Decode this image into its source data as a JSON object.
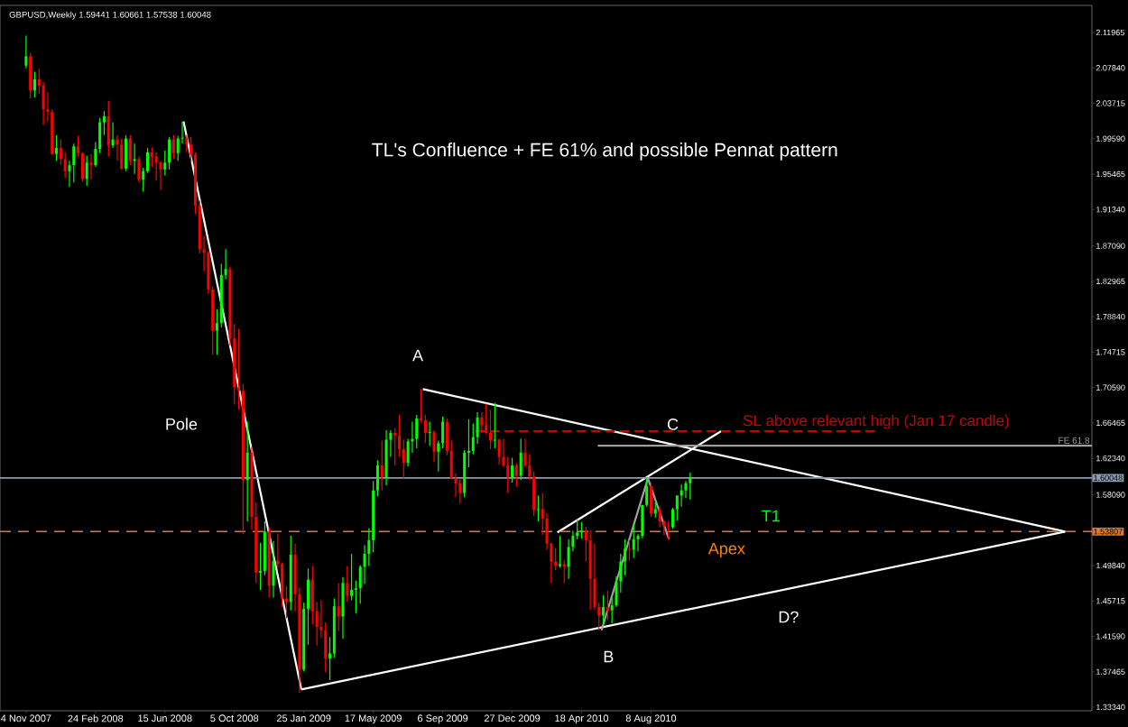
{
  "chart_data": {
    "type": "candlestick",
    "title": "TL's Confluence + FE 61% and possible Pennat pattern",
    "x": [
      "2007-11-04",
      "2007-11-11",
      "2007-11-18",
      "2007-11-25",
      "2007-12-02",
      "2007-12-09",
      "2007-12-16",
      "2007-12-23",
      "2007-12-30",
      "2008-01-06",
      "2008-01-13",
      "2008-01-20",
      "2008-01-27",
      "2008-02-03",
      "2008-02-10",
      "2008-02-17",
      "2008-02-24",
      "2008-03-02",
      "2008-03-09",
      "2008-03-16",
      "2008-03-23",
      "2008-03-30",
      "2008-04-06",
      "2008-04-13",
      "2008-04-20",
      "2008-04-27",
      "2008-05-04",
      "2008-05-11",
      "2008-05-18",
      "2008-05-25",
      "2008-06-01",
      "2008-06-08",
      "2008-06-15",
      "2008-06-22",
      "2008-06-29",
      "2008-07-06",
      "2008-07-13",
      "2008-07-20",
      "2008-07-27",
      "2008-08-03",
      "2008-08-10",
      "2008-08-17",
      "2008-08-24",
      "2008-08-31",
      "2008-09-07",
      "2008-09-14",
      "2008-09-21",
      "2008-09-28",
      "2008-10-05",
      "2008-10-12",
      "2008-10-19",
      "2008-10-26",
      "2008-11-02",
      "2008-11-09",
      "2008-11-16",
      "2008-11-23",
      "2008-11-30",
      "2008-12-07",
      "2008-12-14",
      "2008-12-21",
      "2008-12-28",
      "2009-01-04",
      "2009-01-11",
      "2009-01-18",
      "2009-01-25",
      "2009-02-01",
      "2009-02-08",
      "2009-02-15",
      "2009-02-22",
      "2009-03-01",
      "2009-03-08",
      "2009-03-15",
      "2009-03-22",
      "2009-03-29",
      "2009-04-05",
      "2009-04-12",
      "2009-04-19",
      "2009-04-26",
      "2009-05-03",
      "2009-05-10",
      "2009-05-17",
      "2009-05-24",
      "2009-05-31",
      "2009-06-07",
      "2009-06-14",
      "2009-06-21",
      "2009-06-28",
      "2009-07-05",
      "2009-07-12",
      "2009-07-19",
      "2009-07-26",
      "2009-08-02",
      "2009-08-09",
      "2009-08-16",
      "2009-08-23",
      "2009-08-30",
      "2009-09-06",
      "2009-09-13",
      "2009-09-20",
      "2009-09-27",
      "2009-10-04",
      "2009-10-11",
      "2009-10-18",
      "2009-10-25",
      "2009-11-01",
      "2009-11-08",
      "2009-11-15",
      "2009-11-22",
      "2009-11-29",
      "2009-12-06",
      "2009-12-13",
      "2009-12-20",
      "2009-12-27",
      "2010-01-03",
      "2010-01-10",
      "2010-01-17",
      "2010-01-24",
      "2010-01-31",
      "2010-02-07",
      "2010-02-14",
      "2010-02-21",
      "2010-02-28",
      "2010-03-07",
      "2010-03-14",
      "2010-03-21",
      "2010-03-28",
      "2010-04-04",
      "2010-04-11",
      "2010-04-18",
      "2010-04-25",
      "2010-05-02",
      "2010-05-09",
      "2010-05-16",
      "2010-05-23",
      "2010-05-30",
      "2010-06-06",
      "2010-06-13",
      "2010-06-20",
      "2010-06-27",
      "2010-07-04",
      "2010-07-11",
      "2010-07-18",
      "2010-07-25",
      "2010-08-01",
      "2010-08-08",
      "2010-08-15",
      "2010-08-22",
      "2010-08-29",
      "2010-09-05",
      "2010-09-12",
      "2010-09-19",
      "2010-09-26",
      "2010-10-03",
      "2010-10-10"
    ],
    "ohlc": [
      [
        2.081,
        2.1161,
        2.078,
        2.092
      ],
      [
        2.092,
        2.096,
        2.043,
        2.052
      ],
      [
        2.052,
        2.074,
        2.044,
        2.065
      ],
      [
        2.065,
        2.077,
        2.048,
        2.058
      ],
      [
        2.058,
        2.062,
        2.012,
        2.03
      ],
      [
        2.03,
        2.05,
        2.016,
        2.027
      ],
      [
        2.027,
        2.03,
        1.977,
        1.978
      ],
      [
        1.978,
        2.0,
        1.97,
        1.985
      ],
      [
        1.985,
        1.995,
        1.965,
        1.972
      ],
      [
        1.972,
        1.98,
        1.95,
        1.958
      ],
      [
        1.958,
        1.97,
        1.94,
        1.965
      ],
      [
        1.965,
        1.99,
        1.945,
        1.987
      ],
      [
        1.987,
        1.999,
        1.975,
        1.979
      ],
      [
        1.979,
        1.98,
        1.946,
        1.949
      ],
      [
        1.949,
        1.976,
        1.941,
        1.968
      ],
      [
        1.968,
        1.978,
        1.948,
        1.965
      ],
      [
        1.965,
        1.992,
        1.963,
        1.984
      ],
      [
        1.984,
        2.02,
        1.979,
        2.015
      ],
      [
        2.015,
        2.028,
        2.0,
        2.022
      ],
      [
        2.022,
        2.04,
        1.975,
        1.988
      ],
      [
        1.988,
        2.015,
        1.985,
        1.995
      ],
      [
        1.995,
        2.0,
        1.97,
        1.989
      ],
      [
        1.989,
        1.996,
        1.96,
        1.961
      ],
      [
        1.961,
        2.0,
        1.958,
        1.996
      ],
      [
        1.996,
        2.0,
        1.965,
        1.97
      ],
      [
        1.97,
        1.99,
        1.955,
        1.972
      ],
      [
        1.972,
        1.975,
        1.945,
        1.948
      ],
      [
        1.948,
        1.962,
        1.934,
        1.958
      ],
      [
        1.958,
        1.985,
        1.956,
        1.98
      ],
      [
        1.98,
        1.986,
        1.963,
        1.975
      ],
      [
        1.975,
        1.98,
        1.947,
        1.968
      ],
      [
        1.968,
        1.97,
        1.936,
        1.96
      ],
      [
        1.96,
        1.982,
        1.953,
        1.968
      ],
      [
        1.968,
        1.998,
        1.96,
        1.995
      ],
      [
        1.995,
        2.0,
        1.972,
        1.979
      ],
      [
        1.979,
        1.999,
        1.97,
        1.996
      ],
      [
        1.996,
        2.0157,
        1.99,
        1.997
      ],
      [
        1.997,
        2.0,
        1.98,
        1.989
      ],
      [
        1.989,
        1.998,
        1.968,
        1.977
      ],
      [
        1.977,
        1.98,
        1.908,
        1.918
      ],
      [
        1.918,
        1.924,
        1.862,
        1.867
      ],
      [
        1.867,
        1.883,
        1.841,
        1.863
      ],
      [
        1.863,
        1.865,
        1.815,
        1.82
      ],
      [
        1.82,
        1.824,
        1.744,
        1.772
      ],
      [
        1.772,
        1.797,
        1.744,
        1.781
      ],
      [
        1.781,
        1.85,
        1.776,
        1.837
      ],
      [
        1.837,
        1.867,
        1.832,
        1.844
      ],
      [
        1.844,
        1.847,
        1.755,
        1.763
      ],
      [
        1.763,
        1.78,
        1.686,
        1.706
      ],
      [
        1.706,
        1.774,
        1.68,
        1.702
      ],
      [
        1.702,
        1.71,
        1.535,
        1.598
      ],
      [
        1.598,
        1.666,
        1.55,
        1.63
      ],
      [
        1.63,
        1.637,
        1.54,
        1.555
      ],
      [
        1.555,
        1.572,
        1.478,
        1.49
      ],
      [
        1.49,
        1.525,
        1.47,
        1.492
      ],
      [
        1.492,
        1.55,
        1.487,
        1.538
      ],
      [
        1.538,
        1.543,
        1.461,
        1.475
      ],
      [
        1.475,
        1.527,
        1.461,
        1.504
      ],
      [
        1.504,
        1.536,
        1.495,
        1.5
      ],
      [
        1.5,
        1.502,
        1.45,
        1.46
      ],
      [
        1.46,
        1.475,
        1.437,
        1.456
      ],
      [
        1.456,
        1.533,
        1.446,
        1.511
      ],
      [
        1.511,
        1.524,
        1.445,
        1.465
      ],
      [
        1.465,
        1.473,
        1.3503,
        1.377
      ],
      [
        1.377,
        1.455,
        1.375,
        1.448
      ],
      [
        1.448,
        1.495,
        1.406,
        1.482
      ],
      [
        1.482,
        1.498,
        1.43,
        1.445
      ],
      [
        1.445,
        1.456,
        1.405,
        1.427
      ],
      [
        1.427,
        1.458,
        1.414,
        1.423
      ],
      [
        1.423,
        1.432,
        1.374,
        1.39
      ],
      [
        1.39,
        1.415,
        1.365,
        1.396
      ],
      [
        1.396,
        1.46,
        1.391,
        1.451
      ],
      [
        1.451,
        1.478,
        1.422,
        1.439
      ],
      [
        1.439,
        1.485,
        1.413,
        1.478
      ],
      [
        1.478,
        1.498,
        1.456,
        1.463
      ],
      [
        1.463,
        1.512,
        1.458,
        1.47
      ],
      [
        1.47,
        1.481,
        1.443,
        1.472
      ],
      [
        1.472,
        1.499,
        1.454,
        1.497
      ],
      [
        1.497,
        1.522,
        1.477,
        1.512
      ],
      [
        1.512,
        1.542,
        1.498,
        1.528
      ],
      [
        1.528,
        1.597,
        1.514,
        1.586
      ],
      [
        1.586,
        1.621,
        1.579,
        1.615
      ],
      [
        1.615,
        1.644,
        1.586,
        1.601
      ],
      [
        1.601,
        1.656,
        1.592,
        1.645
      ],
      [
        1.645,
        1.656,
        1.625,
        1.653
      ],
      [
        1.653,
        1.659,
        1.615,
        1.65
      ],
      [
        1.65,
        1.674,
        1.625,
        1.634
      ],
      [
        1.634,
        1.645,
        1.6,
        1.618
      ],
      [
        1.618,
        1.646,
        1.614,
        1.643
      ],
      [
        1.643,
        1.666,
        1.63,
        1.646
      ],
      [
        1.646,
        1.674,
        1.635,
        1.67
      ],
      [
        1.67,
        1.7043,
        1.665,
        1.668
      ],
      [
        1.668,
        1.674,
        1.641,
        1.653
      ],
      [
        1.653,
        1.666,
        1.638,
        1.654
      ],
      [
        1.654,
        1.656,
        1.619,
        1.631
      ],
      [
        1.631,
        1.644,
        1.608,
        1.641
      ],
      [
        1.641,
        1.672,
        1.635,
        1.666
      ],
      [
        1.666,
        1.67,
        1.627,
        1.632
      ],
      [
        1.632,
        1.644,
        1.599,
        1.6
      ],
      [
        1.6,
        1.606,
        1.578,
        1.594
      ],
      [
        1.594,
        1.6,
        1.571,
        1.583
      ],
      [
        1.583,
        1.633,
        1.578,
        1.63
      ],
      [
        1.63,
        1.669,
        1.613,
        1.632
      ],
      [
        1.632,
        1.664,
        1.628,
        1.648
      ],
      [
        1.648,
        1.677,
        1.64,
        1.671
      ],
      [
        1.671,
        1.677,
        1.653,
        1.662
      ],
      [
        1.662,
        1.687,
        1.652,
        1.653
      ],
      [
        1.653,
        1.68,
        1.634,
        1.644
      ],
      [
        1.644,
        1.688,
        1.635,
        1.645
      ],
      [
        1.645,
        1.646,
        1.616,
        1.625
      ],
      [
        1.625,
        1.646,
        1.613,
        1.615
      ],
      [
        1.615,
        1.625,
        1.583,
        1.601
      ],
      [
        1.601,
        1.624,
        1.595,
        1.615
      ],
      [
        1.615,
        1.617,
        1.59,
        1.603
      ],
      [
        1.603,
        1.646,
        1.598,
        1.63
      ],
      [
        1.63,
        1.646,
        1.613,
        1.615
      ],
      [
        1.615,
        1.628,
        1.598,
        1.602
      ],
      [
        1.602,
        1.608,
        1.556,
        1.563
      ],
      [
        1.563,
        1.58,
        1.55,
        1.564
      ],
      [
        1.564,
        1.583,
        1.534,
        1.553
      ],
      [
        1.553,
        1.559,
        1.517,
        1.524
      ],
      [
        1.524,
        1.525,
        1.478,
        1.503
      ],
      [
        1.503,
        1.519,
        1.493,
        1.498
      ],
      [
        1.498,
        1.533,
        1.496,
        1.5
      ],
      [
        1.5,
        1.505,
        1.478,
        1.497
      ],
      [
        1.497,
        1.529,
        1.483,
        1.52
      ],
      [
        1.52,
        1.539,
        1.515,
        1.533
      ],
      [
        1.533,
        1.552,
        1.529,
        1.537
      ],
      [
        1.537,
        1.549,
        1.53,
        1.539
      ],
      [
        1.539,
        1.544,
        1.503,
        1.528
      ],
      [
        1.528,
        1.54,
        1.447,
        1.483
      ],
      [
        1.483,
        1.524,
        1.447,
        1.45
      ],
      [
        1.45,
        1.455,
        1.4229,
        1.44
      ],
      [
        1.44,
        1.464,
        1.429,
        1.45
      ],
      [
        1.45,
        1.469,
        1.435,
        1.446
      ],
      [
        1.446,
        1.462,
        1.431,
        1.452
      ],
      [
        1.452,
        1.486,
        1.45,
        1.48
      ],
      [
        1.48,
        1.512,
        1.467,
        1.503
      ],
      [
        1.503,
        1.529,
        1.487,
        1.518
      ],
      [
        1.518,
        1.528,
        1.504,
        1.517
      ],
      [
        1.517,
        1.547,
        1.507,
        1.529
      ],
      [
        1.529,
        1.535,
        1.515,
        1.533
      ],
      [
        1.533,
        1.569,
        1.53,
        1.569
      ],
      [
        1.569,
        1.5996,
        1.567,
        1.591
      ],
      [
        1.591,
        1.595,
        1.555,
        1.559
      ],
      [
        1.559,
        1.572,
        1.554,
        1.564
      ],
      [
        1.564,
        1.568,
        1.543,
        1.55
      ],
      [
        1.55,
        1.551,
        1.534,
        1.544
      ],
      [
        1.544,
        1.55,
        1.529,
        1.543
      ],
      [
        1.543,
        1.566,
        1.541,
        1.564
      ],
      [
        1.564,
        1.58,
        1.551,
        1.58
      ],
      [
        1.58,
        1.593,
        1.567,
        1.586
      ],
      [
        1.586,
        1.597,
        1.577,
        1.5944
      ],
      [
        1.59441,
        1.60661,
        1.57538,
        1.60048
      ]
    ],
    "colors": [
      "#00ff00",
      "#ff0000",
      "#00ff00",
      "#ff0000",
      "#ff0000",
      "#ff0000",
      "#ff0000",
      "#00ff00",
      "#ff0000",
      "#ff0000",
      "#00ff00",
      "#00ff00",
      "#ff0000",
      "#ff0000",
      "#00ff00",
      "#ff0000",
      "#00ff00",
      "#00ff00",
      "#00ff00",
      "#ff0000",
      "#00ff00",
      "#ff0000",
      "#ff0000",
      "#00ff00",
      "#ff0000",
      "#00ff00",
      "#ff0000",
      "#00ff00",
      "#00ff00",
      "#ff0000",
      "#ff0000",
      "#ff0000",
      "#00ff00",
      "#00ff00",
      "#ff0000",
      "#00ff00",
      "#00ff00",
      "#ff0000",
      "#ff0000",
      "#ff0000",
      "#ff0000",
      "#ff0000",
      "#ff0000",
      "#ff0000",
      "#00ff00",
      "#00ff00",
      "#00ff00",
      "#ff0000",
      "#ff0000",
      "#ff0000",
      "#ff0000",
      "#00ff00",
      "#ff0000",
      "#ff0000",
      "#00ff00",
      "#00ff00",
      "#ff0000",
      "#00ff00",
      "#ff0000",
      "#ff0000",
      "#ff0000",
      "#00ff00",
      "#ff0000",
      "#ff0000",
      "#00ff00",
      "#00ff00",
      "#ff0000",
      "#ff0000",
      "#ff0000",
      "#ff0000",
      "#00ff00",
      "#00ff00",
      "#ff0000",
      "#00ff00",
      "#ff0000",
      "#00ff00",
      "#00ff00",
      "#00ff00",
      "#00ff00",
      "#00ff00",
      "#00ff00",
      "#00ff00",
      "#ff0000",
      "#00ff00",
      "#00ff00",
      "#ff0000",
      "#ff0000",
      "#ff0000",
      "#00ff00",
      "#00ff00",
      "#00ff00",
      "#ff0000",
      "#ff0000",
      "#00ff00",
      "#ff0000",
      "#00ff00",
      "#00ff00",
      "#ff0000",
      "#ff0000",
      "#ff0000",
      "#ff0000",
      "#00ff00",
      "#00ff00",
      "#00ff00",
      "#00ff00",
      "#ff0000",
      "#ff0000",
      "#ff0000",
      "#00ff00",
      "#ff0000",
      "#ff0000",
      "#ff0000",
      "#00ff00",
      "#ff0000",
      "#00ff00",
      "#ff0000",
      "#ff0000",
      "#ff0000",
      "#00ff00",
      "#ff0000",
      "#ff0000",
      "#ff0000",
      "#ff0000",
      "#00ff00",
      "#ff0000",
      "#00ff00",
      "#00ff00",
      "#00ff00",
      "#00ff00",
      "#ff0000",
      "#ff0000",
      "#ff0000",
      "#ff0000",
      "#00ff00",
      "#ff0000",
      "#00ff00",
      "#00ff00",
      "#00ff00",
      "#00ff00",
      "#ff0000",
      "#00ff00",
      "#00ff00",
      "#00ff00",
      "#00ff00",
      "#ff0000",
      "#00ff00",
      "#ff0000",
      "#ff0000",
      "#ff0000",
      "#00ff00",
      "#00ff00",
      "#00ff00",
      "#00ff00",
      "#00ff00"
    ],
    "series": [
      {
        "type": "line",
        "color": "#ffffff",
        "x": [
          "2008-07-15",
          "2009-01-21"
        ],
        "values": [
          2.016,
          1.354
        ]
      },
      {
        "type": "line",
        "color": "#ffffff",
        "x": [
          "2009-08-05",
          "2012-06-06"
        ],
        "values": [
          1.704,
          1.538
        ]
      },
      {
        "type": "line",
        "color": "#ffffff",
        "x": [
          "2009-01-21",
          "2012-06-06"
        ],
        "values": [
          1.354,
          1.538
        ]
      },
      {
        "type": "line",
        "color": "#ffffff",
        "x": [
          "2010-03-10",
          "2010-11-29"
        ],
        "values": [
          1.537,
          1.655
        ]
      },
      {
        "type": "line",
        "color": "#a0a0a0",
        "x": [
          "2010-05-20",
          "2010-08-03",
          "2010-09-06"
        ],
        "values": [
          1.423,
          1.6,
          1.529
        ]
      },
      {
        "type": "line",
        "color": "#cc0000",
        "line_style": "dashed",
        "name": "SL above relevant high (Jan 17 candle)",
        "x": [
          "2009-10-29",
          "2011-08-06"
        ],
        "values": [
          1.655,
          1.655
        ]
      },
      {
        "type": "line",
        "color": "#a0a0a0",
        "name": "FE 61.8",
        "x": [
          "2010-05-14",
          "2012-07-19"
        ],
        "values": [
          1.638,
          1.638
        ]
      }
    ],
    "ref_lines": [
      {
        "axis": "y",
        "value": 1.60048,
        "label": "1.60048",
        "color": "#8c9cb0"
      },
      {
        "axis": "y",
        "value": 1.53807,
        "label": "1.53807",
        "color": "#e07820",
        "line_style": "dashed"
      }
    ],
    "annotations": [
      {
        "text": "C",
        "x": "2010-09-12",
        "y": 1.663
      },
      "A",
      "Pole",
      "B",
      "D?",
      "T1",
      "Apex",
      "GBPUSD,Weekly  1.59441 1.60661 1.57538 1.60048"
    ],
    "xlim": [
      "2007-09-23",
      "2012-07-19"
    ],
    "xticks": [
      {
        "value": "2007-11-04",
        "label": "4 Nov 2007"
      },
      {
        "value": "2008-02-24",
        "label": "24 Feb 2008"
      },
      {
        "value": "2008-06-15",
        "label": "15 Jun 2008"
      },
      {
        "value": "2008-10-05",
        "label": "5 Oct 2008"
      },
      {
        "value": "2009-01-25",
        "label": "25 Jan 2009"
      },
      {
        "value": "2009-05-17",
        "label": "17 May 2009"
      },
      {
        "value": "2009-09-06",
        "label": "6 Sep 2009"
      },
      {
        "value": "2009-12-27",
        "label": "27 Dec 2009"
      },
      {
        "value": "2010-04-18",
        "label": "18 Apr 2010"
      },
      {
        "value": "2010-08-08",
        "label": "8 Aug 2010"
      }
    ],
    "ylim": [
      1.3292,
      2.1512
    ],
    "yticks": [
      2.11965,
      {
        "value": 2.0784,
        "label": "2.07840"
      },
      2.03715,
      {
        "value": 1.9959,
        "label": "1.99590"
      },
      1.95465,
      {
        "value": 1.9134,
        "label": "1.91340"
      },
      {
        "value": 1.8709,
        "label": "1.87090"
      },
      1.82965,
      {
        "value": 1.7884,
        "label": "1.78840"
      },
      1.74715,
      {
        "value": 1.7059,
        "label": "1.70590"
      },
      1.66465,
      {
        "value": 1.6234,
        "label": "1.62340"
      },
      {
        "value": 1.5809,
        "label": "1.58090"
      },
      {
        "value": 1.4984,
        "label": "1.49840"
      },
      1.45715,
      {
        "value": 1.4159,
        "label": "1.41590"
      },
      1.37465,
      {
        "value": 1.3334,
        "label": "1.33340"
      }
    ]
  }
}
